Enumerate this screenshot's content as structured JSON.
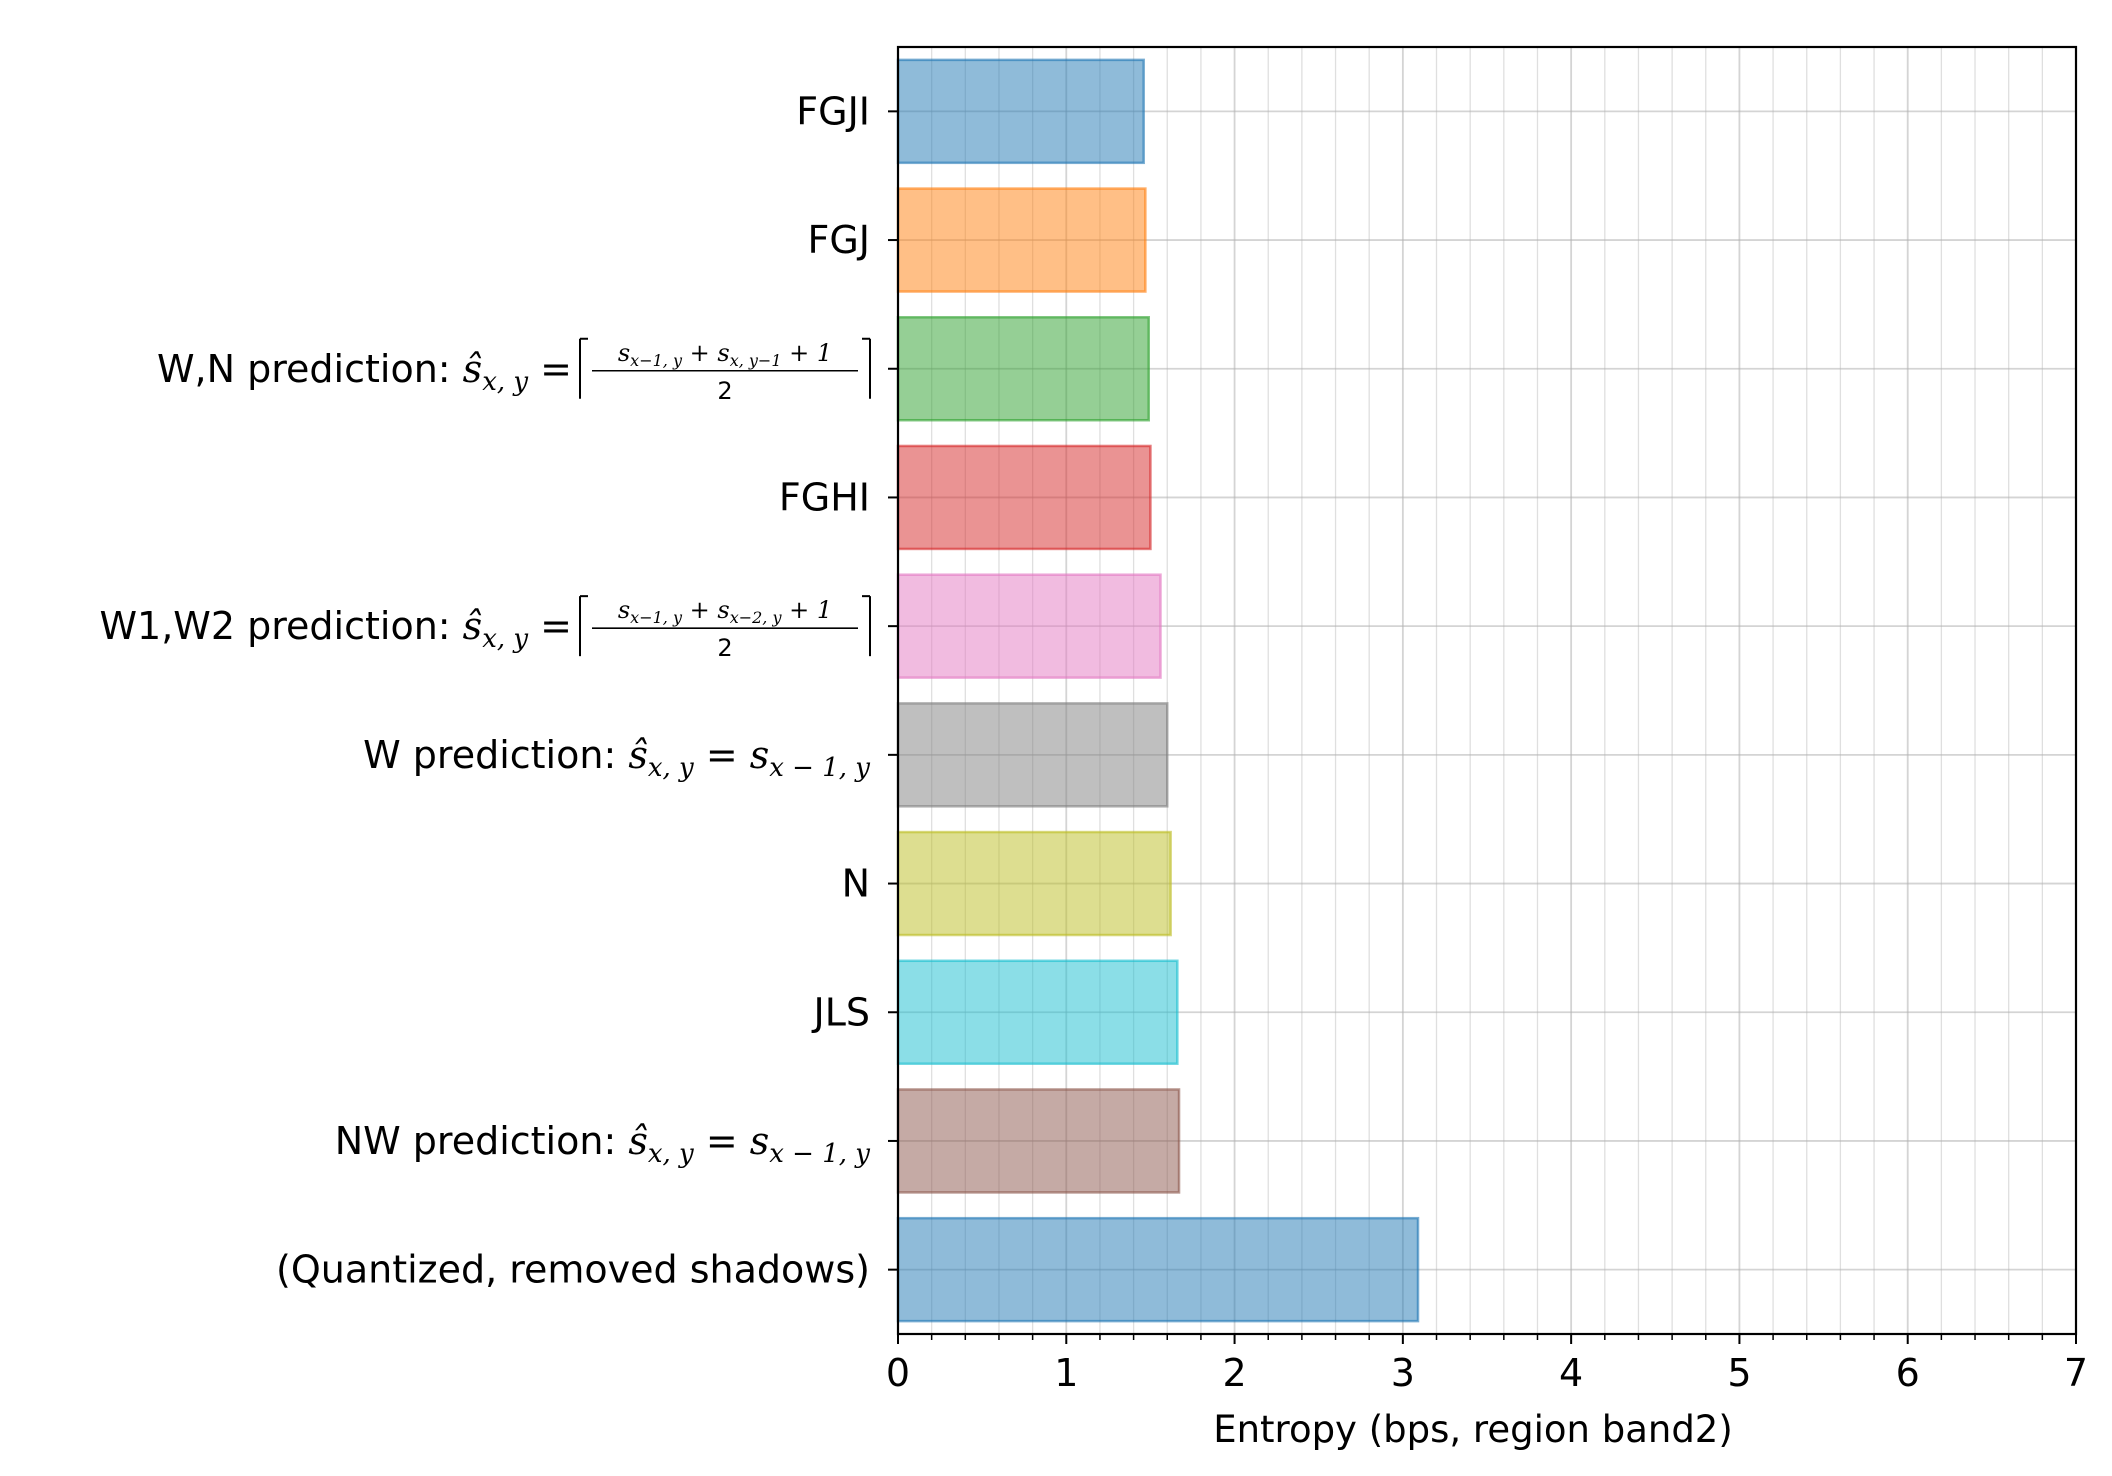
{
  "chart_data": {
    "type": "bar",
    "orientation": "horizontal",
    "title": "",
    "xlabel": "Entropy (bps, region band2)",
    "ylabel": "",
    "xlim": [
      0,
      7
    ],
    "x_major_ticks": [
      "0",
      "1",
      "2",
      "3",
      "4",
      "5",
      "6",
      "7"
    ],
    "x_minor_step": 0.2,
    "grid": "major and minor, x and y",
    "legend": "none",
    "categories": [
      {
        "label": "FGJI",
        "value": 1.46,
        "color": "#1f77b4"
      },
      {
        "label": "FGJ",
        "value": 1.47,
        "color": "#ff7f0e"
      },
      {
        "label": "W,N prediction: ",
        "math": "wn",
        "value": 1.49,
        "color": "#2ca02c"
      },
      {
        "label": "FGHI",
        "value": 1.5,
        "color": "#d62728"
      },
      {
        "label": "W1,W2 prediction: ",
        "math": "w1w2",
        "value": 1.56,
        "color": "#e377c2"
      },
      {
        "label": "W prediction: ",
        "math": "w",
        "value": 1.6,
        "color": "#7f7f7f"
      },
      {
        "label": "N",
        "value": 1.62,
        "color": "#bcbd22"
      },
      {
        "label": "JLS",
        "value": 1.66,
        "color": "#17becf"
      },
      {
        "label": "NW prediction: ",
        "math": "nw",
        "value": 1.67,
        "color": "#8c564b"
      },
      {
        "label": "(Quantized, removed shadows)",
        "value": 3.09,
        "color": "#1f77b4"
      }
    ]
  }
}
